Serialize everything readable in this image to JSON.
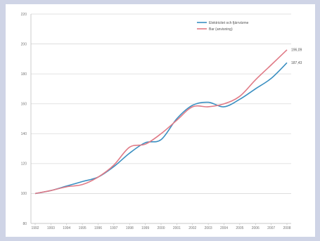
{
  "chart_data": {
    "type": "line",
    "x": [
      "1992",
      "1993",
      "1994",
      "1995",
      "1996",
      "1997",
      "1998",
      "1999",
      "2000",
      "2001",
      "2002",
      "2003",
      "2004",
      "2005",
      "2006",
      "2007",
      "2008"
    ],
    "ylim": [
      80,
      220
    ],
    "yticks": [
      80,
      100,
      120,
      140,
      160,
      180,
      200,
      220
    ],
    "grid": true,
    "legend_position": "top-right",
    "series": [
      {
        "name": "Elektricitet och fjärrvärme",
        "color": "#3a8fc1",
        "values": [
          100,
          102,
          105,
          108,
          111,
          118,
          127,
          134,
          136,
          150,
          159,
          161,
          158,
          163,
          170,
          177,
          187.43
        ],
        "end_label": "187,43"
      },
      {
        "name": "Bar (anvisning)",
        "color": "#e07a86",
        "values": [
          100,
          102,
          104.5,
          106,
          111,
          119,
          131,
          133,
          140,
          149,
          158,
          158,
          160,
          165,
          176,
          186,
          196.09
        ],
        "end_label": "196,09"
      }
    ]
  }
}
